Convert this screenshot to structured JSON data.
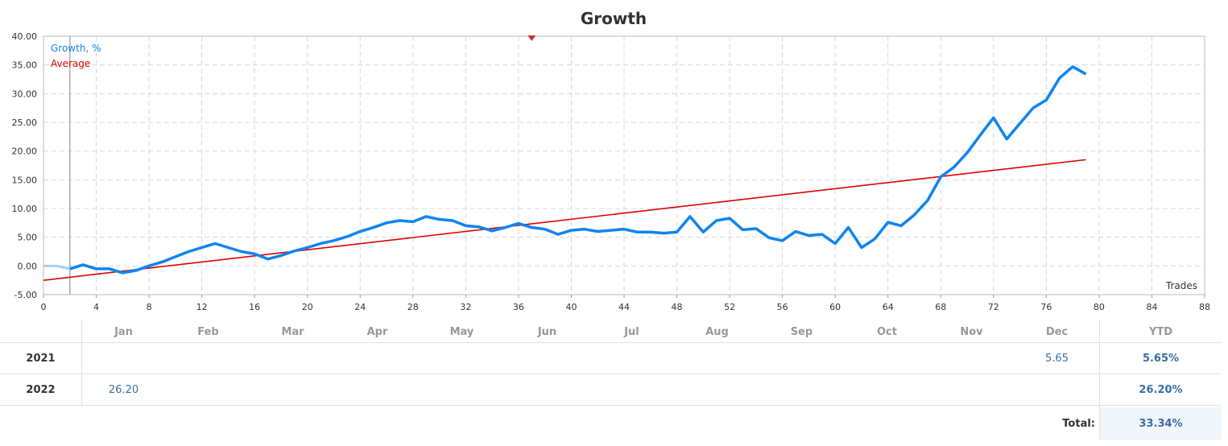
{
  "chart_data": {
    "type": "line",
    "title": "Growth",
    "xlabel": "Trades",
    "ylabel": "",
    "xlim": [
      0,
      88
    ],
    "ylim": [
      -5,
      40
    ],
    "x_ticks": [
      "0",
      "4",
      "8",
      "12",
      "16",
      "20",
      "24",
      "28",
      "32",
      "36",
      "40",
      "44",
      "48",
      "52",
      "56",
      "60",
      "64",
      "68",
      "72",
      "76",
      "80",
      "84",
      "88"
    ],
    "y_ticks": [
      "40.00",
      "35.00",
      "30.00",
      "25.00",
      "20.00",
      "15.00",
      "10.00",
      "5.00",
      "0.00",
      "-5.00"
    ],
    "month_labels": [
      "Jan",
      "Feb",
      "Mar",
      "Apr",
      "May",
      "Jun",
      "Jul",
      "Aug",
      "Sep",
      "Oct",
      "Nov",
      "Dec"
    ],
    "grid": true,
    "legend_position": "top-left",
    "series": [
      {
        "name": "Growth, %",
        "color": "#1084f0",
        "x": [
          0,
          1,
          2,
          3,
          4,
          5,
          6,
          7,
          8,
          9,
          10,
          11,
          12,
          13,
          14,
          15,
          16,
          17,
          18,
          19,
          20,
          21,
          22,
          23,
          24,
          25,
          26,
          27,
          28,
          29,
          30,
          31,
          32,
          33,
          34,
          35,
          36,
          37,
          38,
          39,
          40,
          41,
          42,
          43,
          44,
          45,
          46,
          47,
          48,
          49,
          50,
          51,
          52,
          53,
          54,
          55,
          56,
          57,
          58,
          59,
          60,
          61,
          62,
          63,
          64,
          65,
          66,
          67,
          68,
          69,
          70,
          71,
          72,
          73,
          74,
          75,
          76,
          77,
          78,
          79
        ],
        "values": [
          0,
          0,
          -0.5,
          0.2,
          -0.5,
          -0.5,
          -1.2,
          -0.8,
          0,
          0.7,
          1.6,
          2.5,
          3.2,
          3.9,
          3.2,
          2.5,
          2.1,
          1.2,
          1.8,
          2.6,
          3.2,
          3.9,
          4.4,
          5.1,
          6,
          6.7,
          7.5,
          7.9,
          7.7,
          8.6,
          8.1,
          7.9,
          7,
          6.8,
          6.1,
          6.7,
          7.4,
          6.7,
          6.4,
          5.5,
          6.2,
          6.4,
          6,
          6.2,
          6.4,
          5.9,
          5.9,
          5.7,
          5.9,
          8.6,
          5.9,
          7.9,
          8.3,
          6.3,
          6.5,
          4.9,
          4.4,
          6,
          5.3,
          5.5,
          3.9,
          6.7,
          3.2,
          4.7,
          7.6,
          7,
          8.9,
          11.4,
          15.5,
          17.2,
          19.7,
          22.8,
          25.8,
          22.1,
          24.8,
          27.5,
          28.9,
          32.7,
          34.7,
          33.4
        ]
      },
      {
        "name": "Average",
        "color": "#e00000",
        "x": [
          0,
          79
        ],
        "values": [
          -2.5,
          18.5
        ]
      }
    ],
    "annotations": [
      {
        "type": "marker",
        "x": 37,
        "y": 40,
        "color": "#c0392b"
      }
    ]
  },
  "table": {
    "months": [
      "Jan",
      "Feb",
      "Mar",
      "Apr",
      "May",
      "Jun",
      "Jul",
      "Aug",
      "Sep",
      "Oct",
      "Nov",
      "Dec"
    ],
    "ytd_label": "YTD",
    "rows": [
      {
        "year": "2021",
        "values": [
          "",
          "",
          "",
          "",
          "",
          "",
          "",
          "",
          "",
          "",
          "",
          "5.65"
        ],
        "ytd": "5.65%"
      },
      {
        "year": "2022",
        "values": [
          "26.20",
          "",
          "",
          "",
          "",
          "",
          "",
          "",
          "",
          "",
          "",
          ""
        ],
        "ytd": "26.20%"
      }
    ],
    "total_label": "Total:",
    "total_value": "33.34%"
  }
}
